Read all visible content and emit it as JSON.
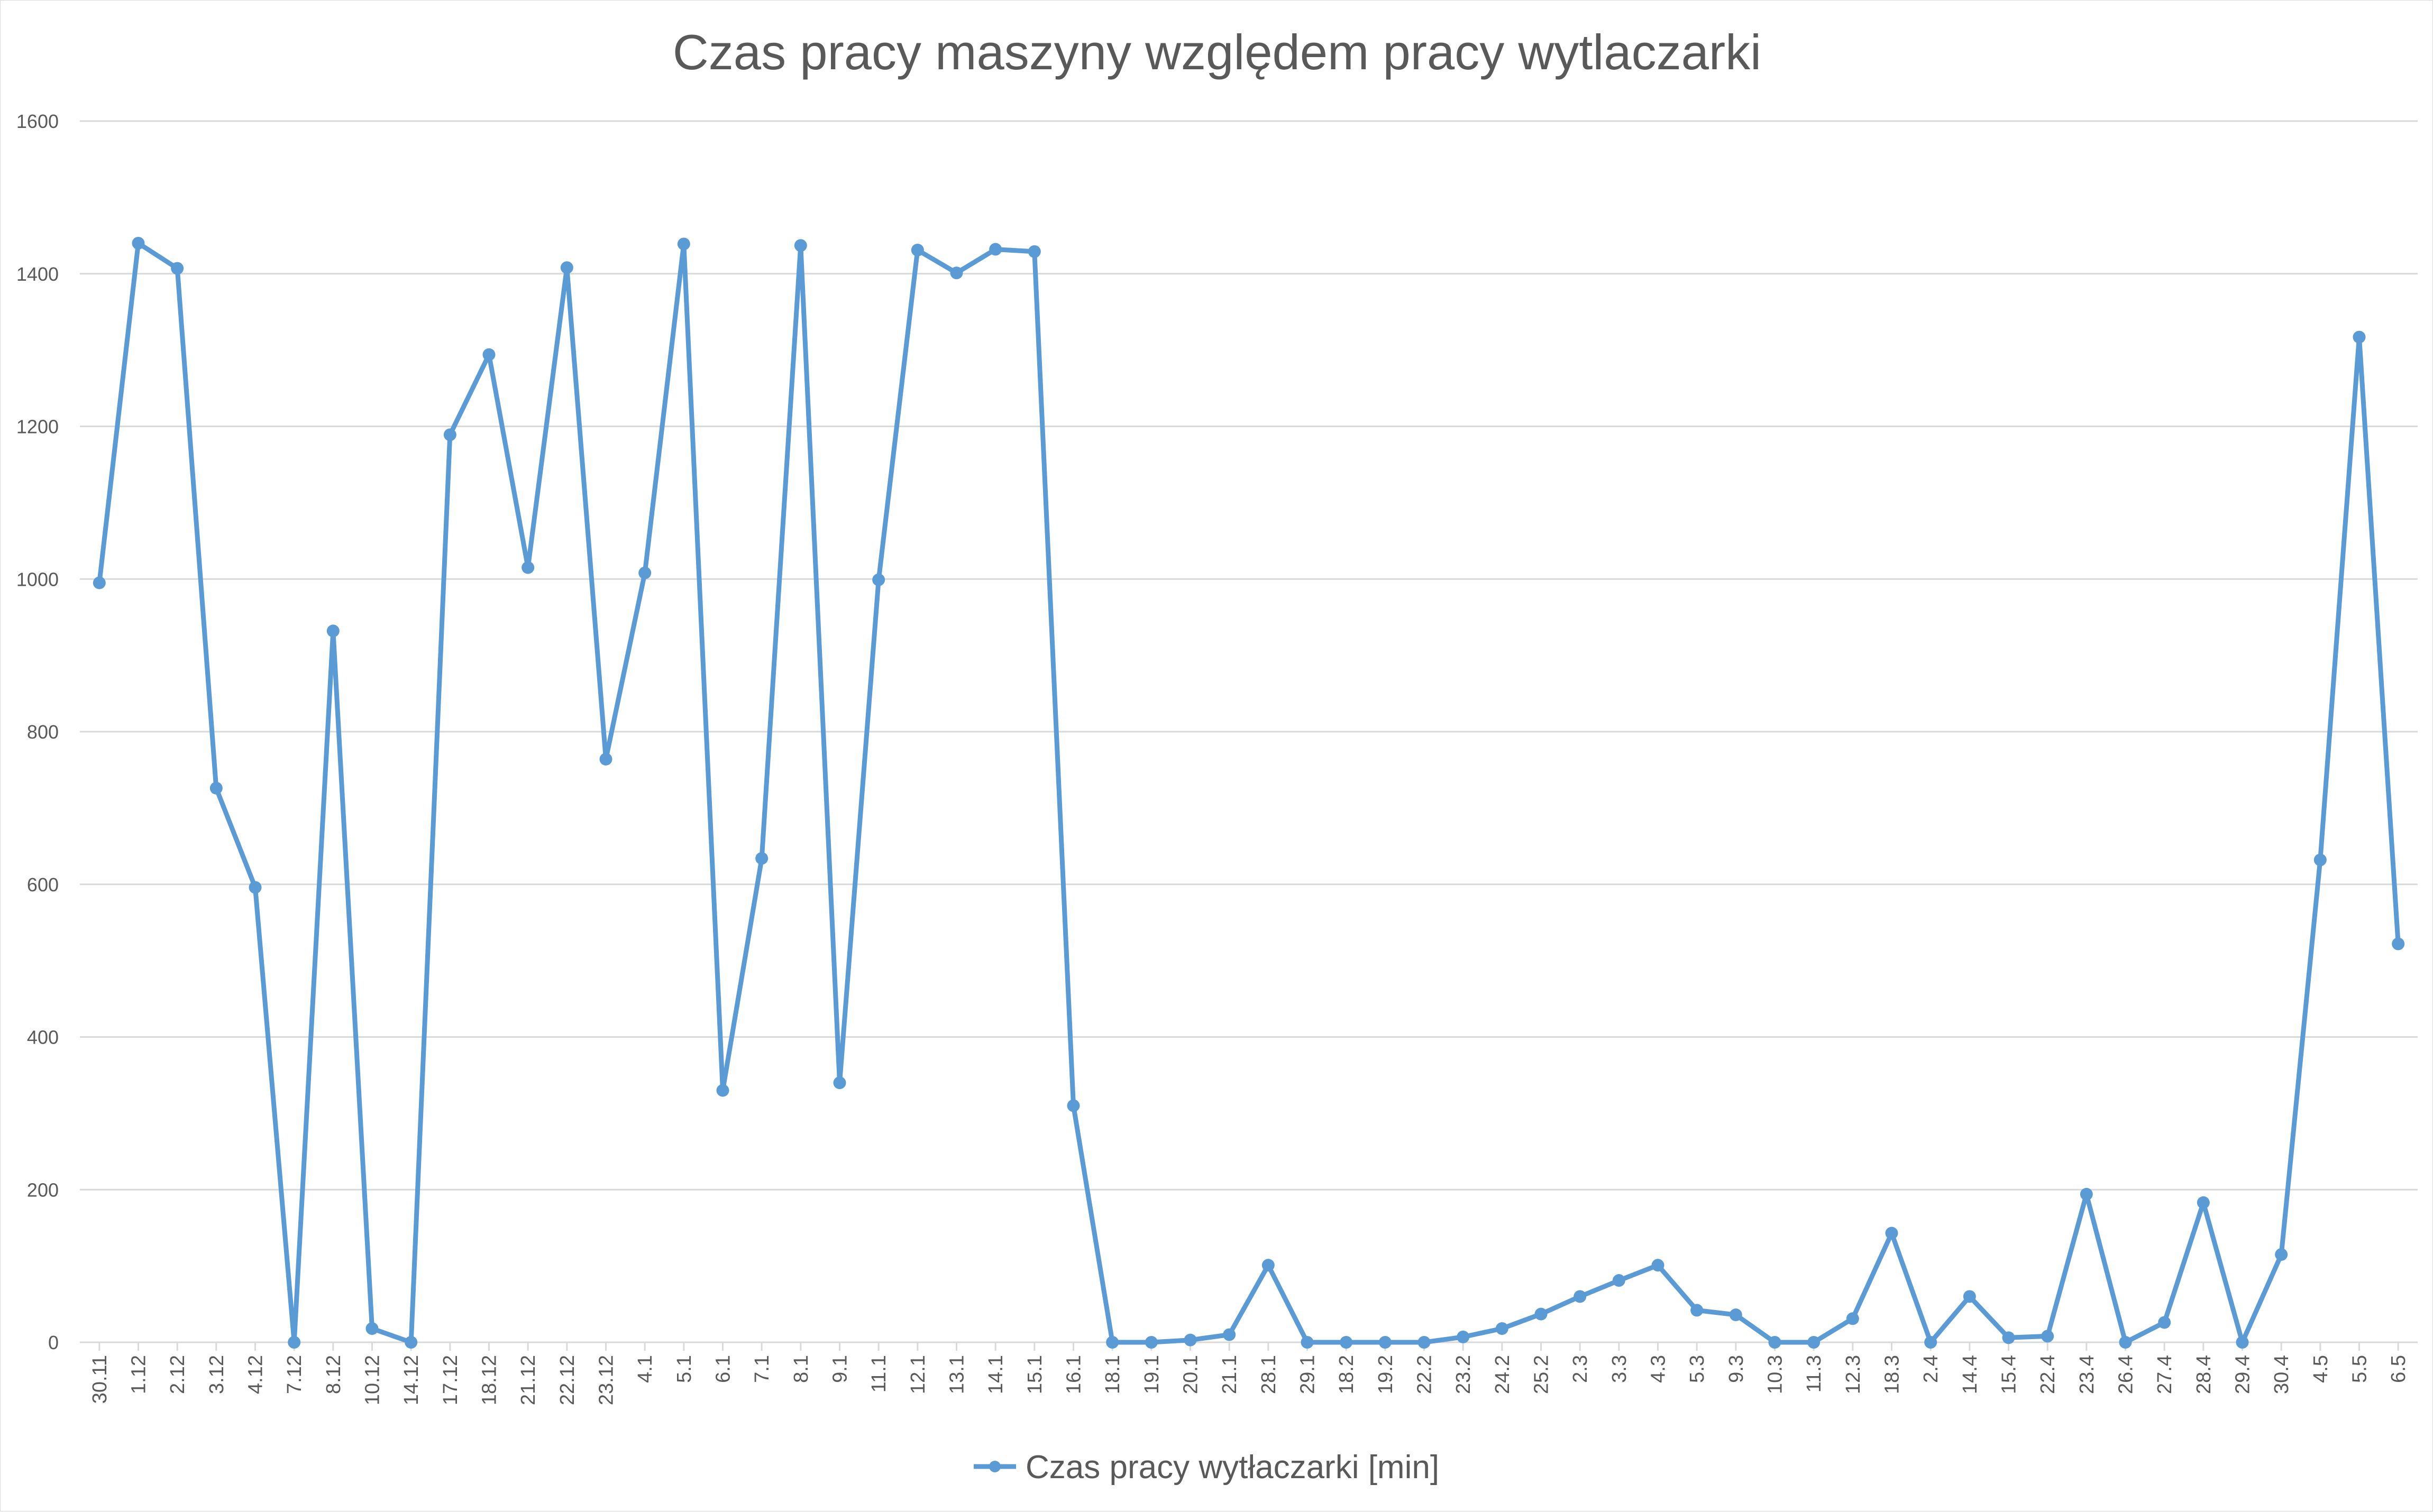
{
  "chart_data": {
    "type": "line",
    "title": "Czas pracy maszyny względem pracy wytlaczarki",
    "xlabel": "",
    "ylabel": "",
    "ylim": [
      0,
      1600
    ],
    "yticks": [
      0,
      200,
      400,
      600,
      800,
      1000,
      1200,
      1400,
      1600
    ],
    "grid": true,
    "legend_position": "bottom",
    "categories": [
      "30.11",
      "1.12",
      "2.12",
      "3.12",
      "4.12",
      "7.12",
      "8.12",
      "10.12",
      "14.12",
      "17.12",
      "18.12",
      "21.12",
      "22.12",
      "23.12",
      "4.1",
      "5.1",
      "6.1",
      "7.1",
      "8.1",
      "9.1",
      "11.1",
      "12.1",
      "13.1",
      "14.1",
      "15.1",
      "16.1",
      "18.1",
      "19.1",
      "20.1",
      "21.1",
      "28.1",
      "29.1",
      "18.2",
      "19.2",
      "22.2",
      "23.2",
      "24.2",
      "25.2",
      "2.3",
      "3.3",
      "4.3",
      "5.3",
      "9.3",
      "10.3",
      "11.3",
      "12.3",
      "18.3",
      "2.4",
      "14.4",
      "15.4",
      "22.4",
      "23.4",
      "26.4",
      "27.4",
      "28.4",
      "29.4",
      "30.4",
      "4.5",
      "5.5",
      "6.5"
    ],
    "series": [
      {
        "name": "Czas pracy wytłaczarki [min]",
        "color": "#5b9bd5",
        "values": [
          995,
          1440,
          1407,
          726,
          596,
          0,
          932,
          18,
          0,
          1189,
          1294,
          1015,
          1408,
          764,
          1008,
          1439,
          330,
          634,
          1437,
          340,
          999,
          1431,
          1401,
          1432,
          1429,
          310,
          0,
          0,
          3,
          10,
          101,
          0,
          0,
          0,
          0,
          7,
          18,
          37,
          60,
          81,
          101,
          42,
          36,
          0,
          0,
          31,
          143,
          0,
          60,
          6,
          8,
          194,
          0,
          26,
          183,
          0,
          115,
          632,
          1317,
          522
        ]
      }
    ]
  }
}
